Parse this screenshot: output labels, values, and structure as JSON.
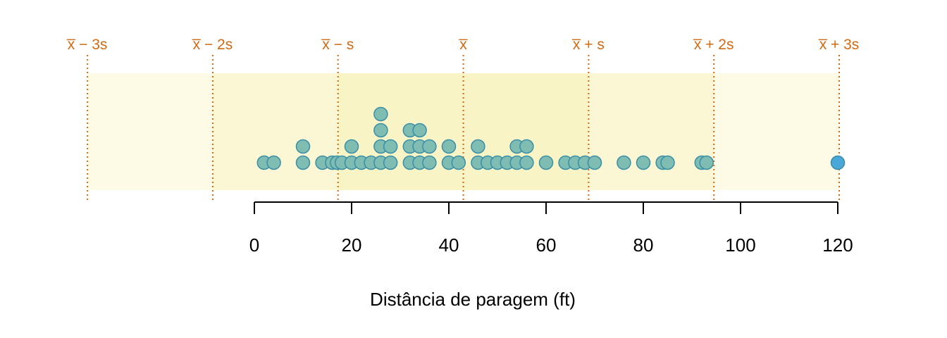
{
  "chart_data": {
    "type": "dotplot",
    "xlabel": "Distância de paragem (ft)",
    "xlim": [
      -5,
      125
    ],
    "x_ticks": [
      "0",
      "20",
      "40",
      "60",
      "80",
      "100",
      "120"
    ],
    "x_tick_values": [
      0,
      20,
      40,
      60,
      80,
      100,
      120
    ],
    "mean": 42.98,
    "sd": 25.77,
    "sd_markers": [
      {
        "k": -3,
        "label": "x̅ − 3s"
      },
      {
        "k": -2,
        "label": "x̅ − 2s"
      },
      {
        "k": -1,
        "label": "x̅ − s"
      },
      {
        "k": 0,
        "label": "x̅"
      },
      {
        "k": 1,
        "label": "x̅ + s"
      },
      {
        "k": 2,
        "label": "x̅ + 2s"
      },
      {
        "k": 3,
        "label": "x̅ + 3s"
      }
    ],
    "values": [
      2,
      4,
      10,
      10,
      14,
      16,
      17,
      18,
      20,
      20,
      22,
      24,
      26,
      26,
      26,
      26,
      28,
      28,
      32,
      32,
      32,
      34,
      34,
      34,
      36,
      36,
      40,
      40,
      42,
      46,
      46,
      48,
      50,
      52,
      54,
      54,
      56,
      56,
      60,
      64,
      66,
      68,
      70,
      76,
      80,
      84,
      85,
      92,
      93,
      120
    ],
    "outliers": [
      120
    ],
    "colors": {
      "dot_fill": "#7fbcb2",
      "dot_stroke": "#3a8fa8",
      "outlier_fill": "#4aa8d8",
      "sd_line": "#d06a12",
      "band_3s": "#fdfbe6",
      "band_2s": "#fbf7d4",
      "band_1s": "#f8f4c6"
    }
  }
}
